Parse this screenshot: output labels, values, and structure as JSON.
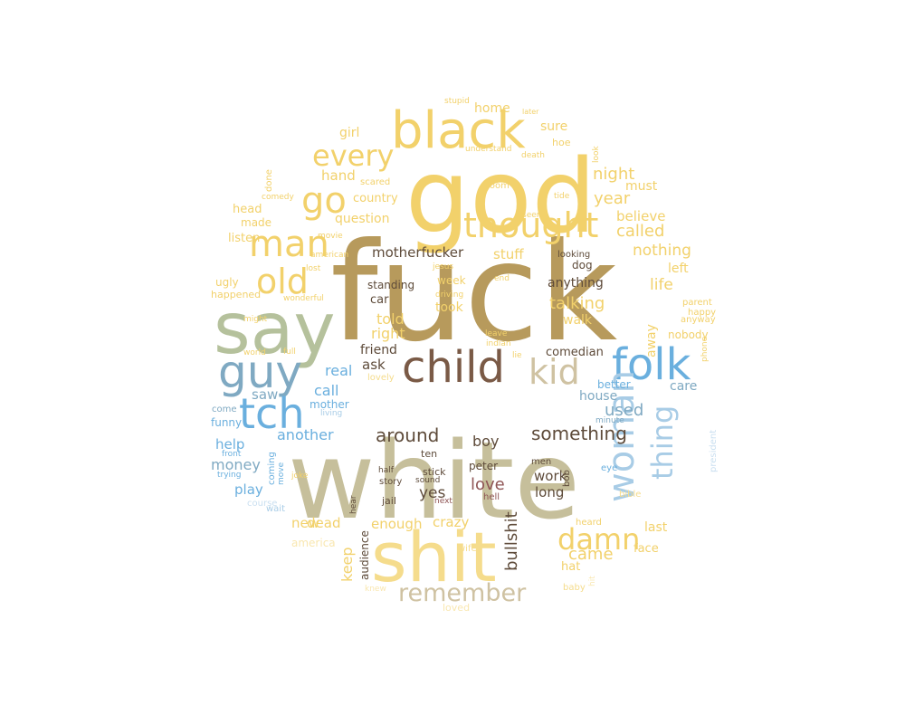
{
  "colors": {
    "background": "#ffffff",
    "gold": "#b79a5c",
    "tan": "#c6bf9b",
    "sage": "#b5c19c",
    "yellow": "#f2d16b",
    "lightyellow": "#f5dc8c",
    "paleyellow": "#f9e7b0",
    "blue": "#6aafde",
    "steelblue": "#7fa9c2",
    "lightblue": "#a8cce6",
    "paleblue": "#c9dff0",
    "beige": "#cfc2a2",
    "darkbrown": "#5e4b3a",
    "brown": "#7a5a46",
    "maroon": "#8f5555"
  },
  "words": [
    {
      "text": "fuck",
      "color": "gold"
    },
    {
      "text": "white",
      "color": "tan"
    },
    {
      "text": "god",
      "color": "yellow"
    },
    {
      "text": "shit",
      "color": "lightyellow"
    },
    {
      "text": "say",
      "color": "sage"
    },
    {
      "text": "black",
      "color": "yellow"
    },
    {
      "text": "child",
      "color": "brown"
    },
    {
      "text": "folk",
      "color": "blue"
    },
    {
      "text": "guy",
      "color": "steelblue"
    },
    {
      "text": "tch",
      "color": "blue"
    },
    {
      "text": "thought",
      "color": "yellow"
    },
    {
      "text": "man",
      "color": "yellow"
    },
    {
      "text": "go",
      "color": "yellow"
    },
    {
      "text": "woman",
      "color": "lightblue"
    },
    {
      "text": "kid",
      "color": "beige"
    },
    {
      "text": "every",
      "color": "yellow"
    },
    {
      "text": "old",
      "color": "yellow"
    },
    {
      "text": "thing",
      "color": "lightblue"
    },
    {
      "text": "remember",
      "color": "beige"
    },
    {
      "text": "damn",
      "color": "yellow"
    },
    {
      "text": "something",
      "color": "darkbrown"
    },
    {
      "text": "around",
      "color": "darkbrown"
    },
    {
      "text": "love",
      "color": "maroon"
    },
    {
      "text": "bullshit",
      "color": "darkbrown"
    },
    {
      "text": "boy",
      "color": "darkbrown"
    },
    {
      "text": "called",
      "color": "yellow"
    },
    {
      "text": "used",
      "color": "steelblue"
    },
    {
      "text": "another",
      "color": "blue"
    },
    {
      "text": "came",
      "color": "yellow"
    },
    {
      "text": "talking",
      "color": "yellow"
    },
    {
      "text": "anything",
      "color": "darkbrown"
    },
    {
      "text": "night",
      "color": "yellow"
    },
    {
      "text": "year",
      "color": "yellow"
    },
    {
      "text": "believe",
      "color": "yellow"
    },
    {
      "text": "nothing",
      "color": "yellow"
    },
    {
      "text": "life",
      "color": "yellow"
    },
    {
      "text": "motherfucker",
      "color": "darkbrown"
    },
    {
      "text": "stuff",
      "color": "yellow"
    },
    {
      "text": "told",
      "color": "yellow"
    },
    {
      "text": "right",
      "color": "yellow"
    },
    {
      "text": "real",
      "color": "blue"
    },
    {
      "text": "ask",
      "color": "darkbrown"
    },
    {
      "text": "call",
      "color": "blue"
    },
    {
      "text": "saw",
      "color": "steelblue"
    },
    {
      "text": "yes",
      "color": "darkbrown"
    },
    {
      "text": "keep",
      "color": "yellow"
    },
    {
      "text": "new",
      "color": "yellow"
    },
    {
      "text": "dead",
      "color": "yellow"
    },
    {
      "text": "enough",
      "color": "yellow"
    },
    {
      "text": "crazy",
      "color": "yellow"
    },
    {
      "text": "work",
      "color": "darkbrown"
    },
    {
      "text": "long",
      "color": "darkbrown"
    },
    {
      "text": "money",
      "color": "steelblue"
    },
    {
      "text": "help",
      "color": "blue"
    },
    {
      "text": "play",
      "color": "blue"
    },
    {
      "text": "country",
      "color": "yellow"
    },
    {
      "text": "question",
      "color": "yellow"
    },
    {
      "text": "hand",
      "color": "yellow"
    },
    {
      "text": "girl",
      "color": "yellow"
    },
    {
      "text": "home",
      "color": "yellow"
    },
    {
      "text": "sure",
      "color": "yellow"
    },
    {
      "text": "must",
      "color": "yellow"
    },
    {
      "text": "took",
      "color": "yellow"
    },
    {
      "text": "walk",
      "color": "yellow"
    },
    {
      "text": "away",
      "color": "yellow"
    },
    {
      "text": "care",
      "color": "steelblue"
    },
    {
      "text": "house",
      "color": "steelblue"
    },
    {
      "text": "left",
      "color": "yellow"
    },
    {
      "text": "friend",
      "color": "darkbrown"
    },
    {
      "text": "comedian",
      "color": "darkbrown"
    },
    {
      "text": "car",
      "color": "darkbrown"
    },
    {
      "text": "standing",
      "color": "darkbrown"
    },
    {
      "text": "week",
      "color": "yellow"
    },
    {
      "text": "dog",
      "color": "darkbrown"
    },
    {
      "text": "hat",
      "color": "yellow"
    },
    {
      "text": "face",
      "color": "yellow"
    },
    {
      "text": "last",
      "color": "yellow"
    },
    {
      "text": "audience",
      "color": "darkbrown"
    },
    {
      "text": "mother",
      "color": "blue"
    },
    {
      "text": "funny",
      "color": "blue"
    },
    {
      "text": "listen",
      "color": "yellow"
    },
    {
      "text": "head",
      "color": "yellow"
    },
    {
      "text": "made",
      "color": "yellow"
    },
    {
      "text": "ugly",
      "color": "yellow"
    },
    {
      "text": "happened",
      "color": "yellow"
    },
    {
      "text": "better",
      "color": "blue"
    },
    {
      "text": "nobody",
      "color": "yellow"
    },
    {
      "text": "peter",
      "color": "darkbrown"
    },
    {
      "text": "ten",
      "color": "darkbrown"
    },
    {
      "text": "stick",
      "color": "darkbrown"
    },
    {
      "text": "jail",
      "color": "darkbrown"
    },
    {
      "text": "half",
      "color": "darkbrown"
    },
    {
      "text": "story",
      "color": "darkbrown"
    },
    {
      "text": "sound",
      "color": "darkbrown"
    },
    {
      "text": "hell",
      "color": "maroon"
    },
    {
      "text": "next",
      "color": "maroon"
    },
    {
      "text": "men",
      "color": "darkbrown"
    },
    {
      "text": "bob",
      "color": "darkbrown"
    },
    {
      "text": "eye",
      "color": "blue"
    },
    {
      "text": "bible",
      "color": "lightyellow"
    },
    {
      "text": "heard",
      "color": "yellow"
    },
    {
      "text": "hit",
      "color": "paleyellow"
    },
    {
      "text": "baby",
      "color": "lightyellow"
    },
    {
      "text": "wife",
      "color": "lightyellow"
    },
    {
      "text": "knew",
      "color": "paleyellow"
    },
    {
      "text": "loved",
      "color": "paleyellow"
    },
    {
      "text": "lovely",
      "color": "lightyellow"
    },
    {
      "text": "america",
      "color": "paleyellow"
    },
    {
      "text": "hear",
      "color": "darkbrown"
    },
    {
      "text": "done",
      "color": "yellow"
    },
    {
      "text": "comedy",
      "color": "yellow"
    },
    {
      "text": "scared",
      "color": "yellow"
    },
    {
      "text": "movie",
      "color": "yellow"
    },
    {
      "text": "american",
      "color": "yellow"
    },
    {
      "text": "lost",
      "color": "yellow"
    },
    {
      "text": "jesus",
      "color": "yellow"
    },
    {
      "text": "driving",
      "color": "yellow"
    },
    {
      "text": "wonderful",
      "color": "yellow"
    },
    {
      "text": "end",
      "color": "yellow"
    },
    {
      "text": "leave",
      "color": "yellow"
    },
    {
      "text": "indian",
      "color": "yellow"
    },
    {
      "text": "lie",
      "color": "yellow"
    },
    {
      "text": "room",
      "color": "yellow"
    },
    {
      "text": "seen",
      "color": "yellow"
    },
    {
      "text": "understand",
      "color": "yellow"
    },
    {
      "text": "death",
      "color": "yellow"
    },
    {
      "text": "hoe",
      "color": "yellow"
    },
    {
      "text": "look",
      "color": "yellow"
    },
    {
      "text": "tide",
      "color": "yellow"
    },
    {
      "text": "stupid",
      "color": "yellow"
    },
    {
      "text": "later",
      "color": "yellow"
    },
    {
      "text": "looking",
      "color": "darkbrown"
    },
    {
      "text": "parent",
      "color": "yellow"
    },
    {
      "text": "happy",
      "color": "yellow"
    },
    {
      "text": "anyway",
      "color": "yellow"
    },
    {
      "text": "phone",
      "color": "yellow"
    },
    {
      "text": "might",
      "color": "yellow"
    },
    {
      "text": "world",
      "color": "yellow"
    },
    {
      "text": "full",
      "color": "yellow"
    },
    {
      "text": "joke",
      "color": "yellow"
    },
    {
      "text": "living",
      "color": "lightblue"
    },
    {
      "text": "come",
      "color": "steelblue"
    },
    {
      "text": "front",
      "color": "blue"
    },
    {
      "text": "trying",
      "color": "blue"
    },
    {
      "text": "coming",
      "color": "blue"
    },
    {
      "text": "move",
      "color": "blue"
    },
    {
      "text": "course",
      "color": "paleblue"
    },
    {
      "text": "wait",
      "color": "lightblue"
    },
    {
      "text": "minute",
      "color": "steelblue"
    },
    {
      "text": "president",
      "color": "paleblue"
    }
  ]
}
